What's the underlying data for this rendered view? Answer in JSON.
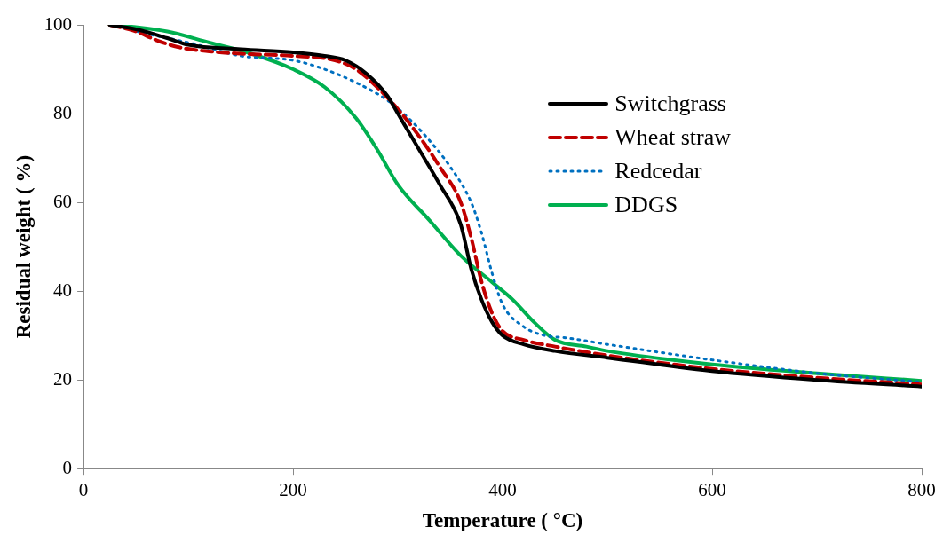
{
  "chart_data": {
    "type": "line",
    "xlabel": "Temperature ( °C)",
    "ylabel": "Residual weight ( %)",
    "xlim": [
      0,
      800
    ],
    "xticks": [
      0,
      200,
      400,
      600,
      800
    ],
    "ylim": [
      0,
      100
    ],
    "yticks": [
      0,
      20,
      40,
      60,
      80,
      100
    ],
    "grid": false,
    "legend": "top right",
    "marker": "none",
    "series": [
      {
        "name": "Switchgrass",
        "color": "#000000",
        "line_style": "solid",
        "x": [
          25,
          50,
          80,
          100,
          150,
          200,
          230,
          250,
          270,
          290,
          300,
          320,
          340,
          360,
          370,
          380,
          390,
          400,
          420,
          450,
          500,
          600,
          700,
          800
        ],
        "values": [
          100,
          99,
          97,
          95.5,
          94.5,
          93.8,
          93,
          92,
          89,
          84,
          80,
          72,
          64,
          55,
          45,
          38,
          33,
          30,
          28,
          26.5,
          25,
          22,
          20,
          18.5
        ]
      },
      {
        "name": "Wheat straw",
        "color": "#c00000",
        "line_style": "dashed",
        "x": [
          25,
          50,
          70,
          90,
          120,
          150,
          200,
          240,
          260,
          280,
          300,
          320,
          340,
          360,
          370,
          380,
          390,
          400,
          420,
          450,
          500,
          600,
          700,
          800
        ],
        "values": [
          100,
          98.5,
          96.5,
          95,
          94,
          93.5,
          93,
          92,
          90,
          86,
          81,
          75,
          68,
          60,
          52,
          42,
          35,
          31,
          29,
          27.5,
          25.5,
          22.5,
          20.5,
          19
        ]
      },
      {
        "name": "Redcedar",
        "color": "#0070c0",
        "line_style": "dotted",
        "x": [
          25,
          60,
          100,
          150,
          200,
          230,
          260,
          290,
          310,
          330,
          350,
          370,
          380,
          390,
          400,
          420,
          440,
          460,
          500,
          600,
          700,
          800
        ],
        "values": [
          100,
          98,
          96,
          93,
          92,
          90,
          87,
          83,
          79,
          74,
          68,
          60,
          53,
          44,
          37,
          32,
          30,
          29.5,
          28,
          24.5,
          21.5,
          19.5
        ]
      },
      {
        "name": "DDGS",
        "color": "#00b050",
        "line_style": "solid",
        "x": [
          25,
          50,
          80,
          120,
          160,
          200,
          230,
          260,
          280,
          300,
          330,
          360,
          390,
          410,
          430,
          450,
          480,
          500,
          600,
          700,
          800
        ],
        "values": [
          100,
          99.5,
          98.5,
          96,
          93.5,
          90,
          86,
          79,
          72,
          64,
          56,
          48,
          42,
          38,
          33,
          29,
          27.5,
          26.5,
          23.5,
          21.5,
          19.8
        ]
      }
    ]
  }
}
